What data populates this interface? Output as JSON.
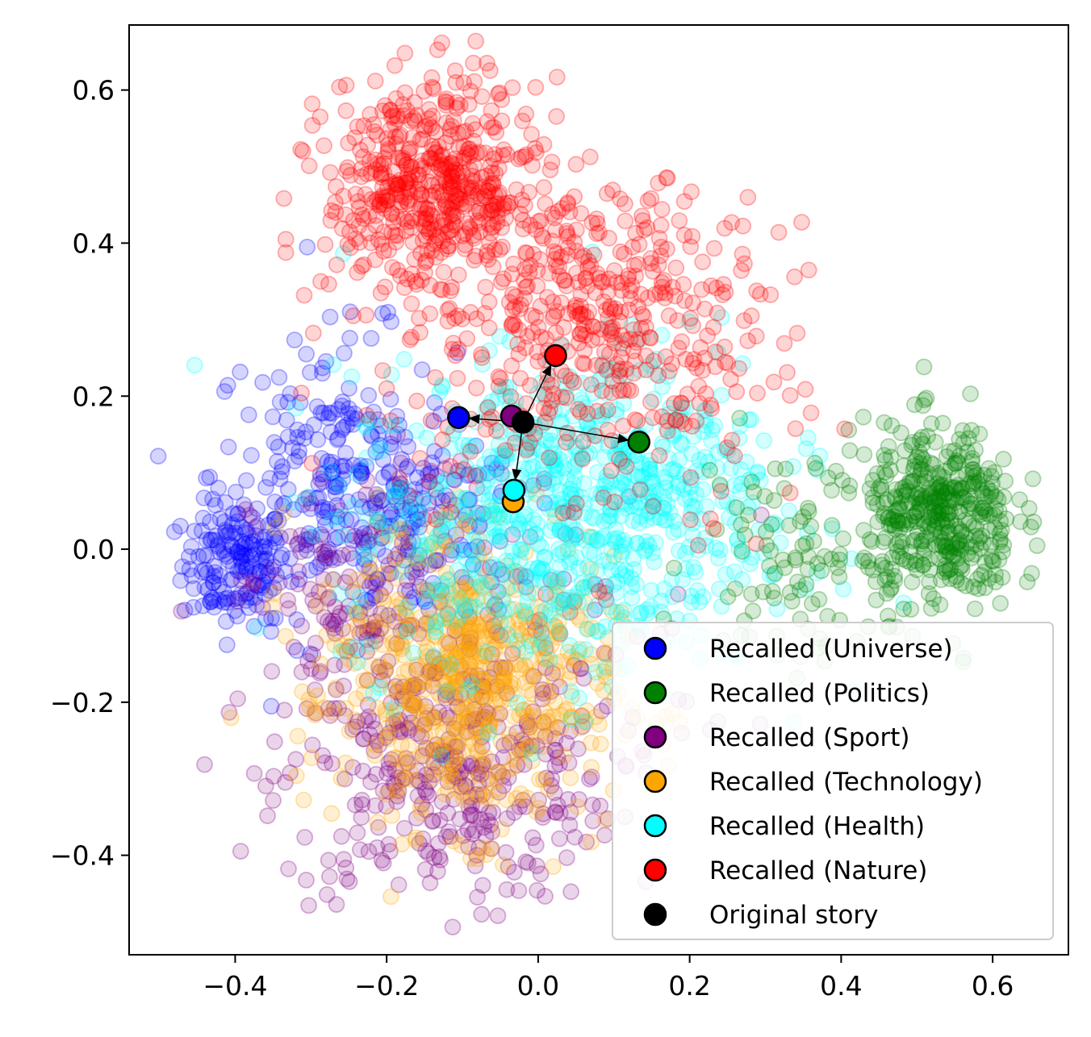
{
  "chart_data": {
    "type": "scatter",
    "title": "",
    "xlabel": "",
    "ylabel": "",
    "xlim": [
      -0.54,
      0.7
    ],
    "ylim": [
      -0.53,
      0.685
    ],
    "xticks": [
      -0.4,
      -0.2,
      0.0,
      0.2,
      0.4,
      0.6
    ],
    "xtick_labels": [
      "−0.4",
      "−0.2",
      "0.0",
      "0.2",
      "0.4",
      "0.6"
    ],
    "yticks": [
      -0.4,
      -0.2,
      0.0,
      0.2,
      0.4,
      0.6
    ],
    "ytick_labels": [
      "−0.4",
      "−0.2",
      "0.0",
      "0.2",
      "0.4",
      "0.6"
    ],
    "grid": false,
    "legend_position": "lower-right",
    "clouds": [
      {
        "color": "#0000ff",
        "clusters": [
          {
            "cx": -0.4,
            "cy": -0.02,
            "sx": 0.035,
            "sy": 0.04,
            "n": 150
          },
          {
            "cx": -0.27,
            "cy": 0.1,
            "sx": 0.08,
            "sy": 0.09,
            "n": 220
          },
          {
            "cx": -0.16,
            "cy": 0.02,
            "sx": 0.07,
            "sy": 0.06,
            "n": 120
          }
        ]
      },
      {
        "color": "#800080",
        "clusters": [
          {
            "cx": -0.12,
            "cy": -0.3,
            "sx": 0.11,
            "sy": 0.08,
            "n": 330
          },
          {
            "cx": -0.24,
            "cy": -0.08,
            "sx": 0.07,
            "sy": 0.09,
            "n": 150
          },
          {
            "cx": -0.02,
            "cy": -0.1,
            "sx": 0.12,
            "sy": 0.12,
            "n": 120
          }
        ]
      },
      {
        "color": "#ffa500",
        "clusters": [
          {
            "cx": -0.08,
            "cy": -0.19,
            "sx": 0.09,
            "sy": 0.09,
            "n": 480
          },
          {
            "cx": -0.14,
            "cy": -0.1,
            "sx": 0.08,
            "sy": 0.08,
            "n": 150
          }
        ]
      },
      {
        "color": "#00ffff",
        "clusters": [
          {
            "cx": 0.02,
            "cy": 0.03,
            "sx": 0.14,
            "sy": 0.1,
            "n": 620
          },
          {
            "cx": 0.14,
            "cy": 0.14,
            "sx": 0.09,
            "sy": 0.07,
            "n": 160
          }
        ]
      },
      {
        "color": "#008000",
        "clusters": [
          {
            "cx": 0.53,
            "cy": 0.04,
            "sx": 0.05,
            "sy": 0.06,
            "n": 420
          },
          {
            "cx": 0.33,
            "cy": 0.0,
            "sx": 0.06,
            "sy": 0.08,
            "n": 90
          }
        ]
      },
      {
        "color": "#ff0000",
        "clusters": [
          {
            "cx": -0.14,
            "cy": 0.47,
            "sx": 0.07,
            "sy": 0.07,
            "n": 520
          },
          {
            "cx": 0.1,
            "cy": 0.33,
            "sx": 0.1,
            "sy": 0.07,
            "n": 320
          },
          {
            "cx": 0.05,
            "cy": 0.18,
            "sx": 0.15,
            "sy": 0.08,
            "n": 140
          }
        ]
      }
    ],
    "series": [
      {
        "name": "Recalled (Universe)",
        "color": "#0000ff",
        "x": -0.105,
        "y": 0.172
      },
      {
        "name": "Recalled (Politics)",
        "color": "#008000",
        "x": 0.133,
        "y": 0.14
      },
      {
        "name": "Recalled (Sport)",
        "color": "#800080",
        "x": -0.035,
        "y": 0.174
      },
      {
        "name": "Recalled (Technology)",
        "color": "#ffa500",
        "x": -0.033,
        "y": 0.062
      },
      {
        "name": "Recalled (Health)",
        "color": "#00ffff",
        "x": -0.032,
        "y": 0.077
      },
      {
        "name": "Recalled (Nature)",
        "color": "#ff0000",
        "x": 0.023,
        "y": 0.253
      },
      {
        "name": "Original story",
        "color": "#000000",
        "x": -0.02,
        "y": 0.166
      }
    ],
    "arrows": [
      {
        "from": "Original story",
        "to": "Recalled (Universe)"
      },
      {
        "from": "Original story",
        "to": "Recalled (Politics)"
      },
      {
        "from": "Original story",
        "to": "Recalled (Health)"
      },
      {
        "from": "Original story",
        "to": "Recalled (Nature)"
      }
    ]
  }
}
